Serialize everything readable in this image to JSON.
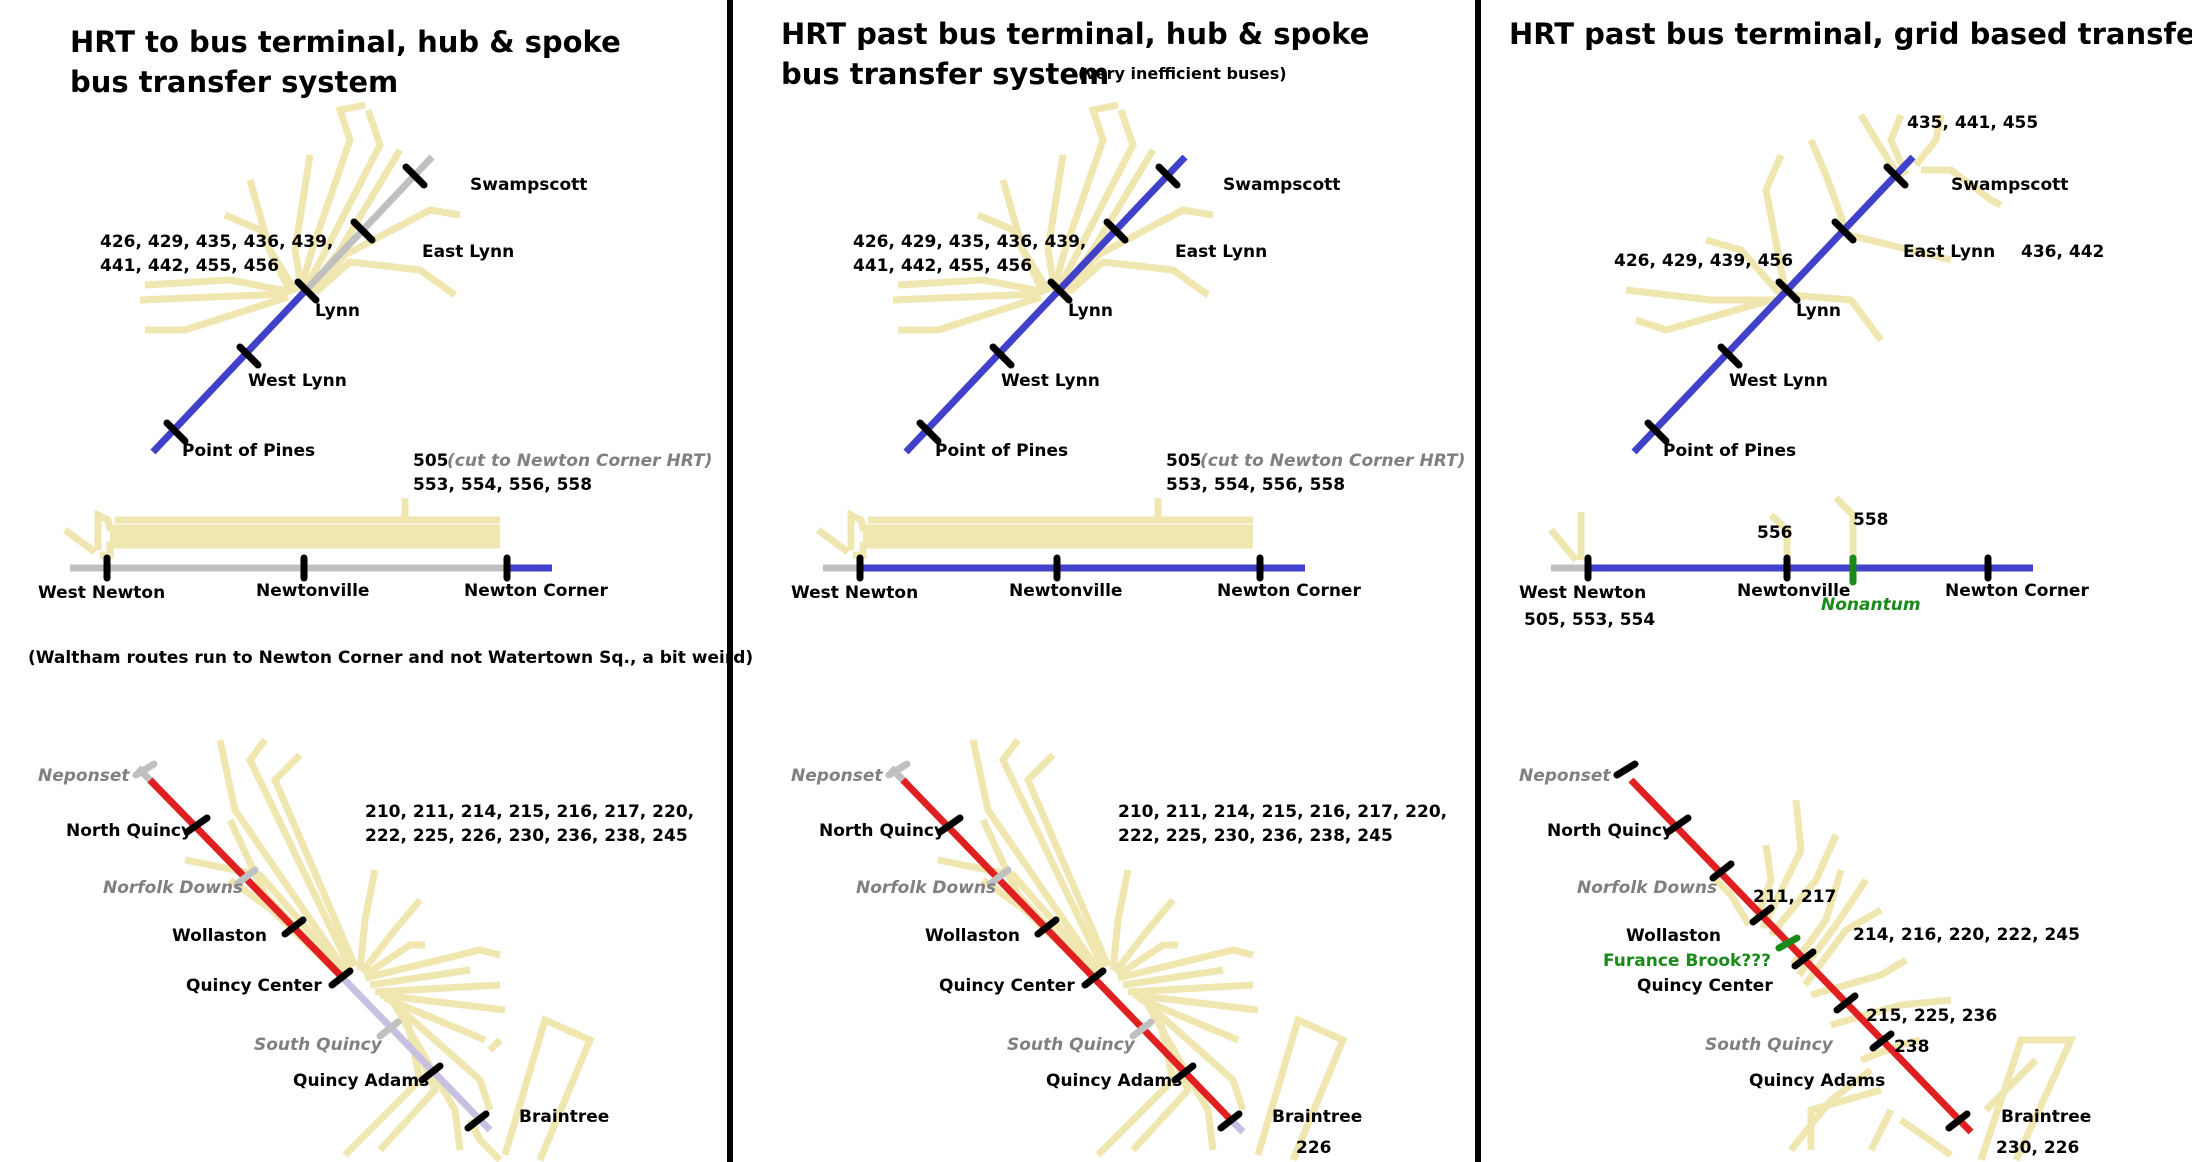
{
  "panel1": {
    "title_line1": "HRT to bus terminal, hub & spoke",
    "title_line2": "bus transfer system",
    "lynn_routes_1": "426, 429, 435, 436, 439,",
    "lynn_routes_2": "441, 442, 455, 456",
    "swampscott": "Swampscott",
    "east_lynn": "East Lynn",
    "lynn": "Lynn",
    "west_lynn": "West Lynn",
    "point_of_pines": "Point of Pines",
    "route_505": "505",
    "cut_note": "(cut to Newton Corner HRT)",
    "routes_55x": "553, 554, 556, 558",
    "west_newton": "West Newton",
    "newtonville": "Newtonville",
    "newton_corner": "Newton Corner",
    "waltham_note": "(Waltham routes run to Newton Corner and not Watertown Sq., a bit weird)",
    "neponset": "Neponset",
    "north_quincy": "North Quincy",
    "norfolk_downs": "Norfolk Downs",
    "wollaston": "Wollaston",
    "quincy_center": "Quincy Center",
    "south_quincy": "South Quincy",
    "quincy_adams": "Quincy Adams",
    "braintree": "Braintree",
    "quincy_routes_1": "210, 211, 214, 215, 216, 217, 220,",
    "quincy_routes_2": "222, 225, 226, 230, 236, 238, 245"
  },
  "panel2": {
    "title_line1": "HRT past bus terminal, hub & spoke",
    "title_line2": "bus transfer system",
    "subnote": "(very inefficient buses)",
    "lynn_routes_1": "426, 429, 435, 436, 439,",
    "lynn_routes_2": "441, 442, 455, 456",
    "swampscott": "Swampscott",
    "east_lynn": "East Lynn",
    "lynn": "Lynn",
    "west_lynn": "West Lynn",
    "point_of_pines": "Point of Pines",
    "route_505": "505",
    "cut_note": "(cut to Newton Corner HRT)",
    "routes_55x": "553, 554, 556, 558",
    "west_newton": "West Newton",
    "newtonville": "Newtonville",
    "newton_corner": "Newton Corner",
    "neponset": "Neponset",
    "north_quincy": "North Quincy",
    "norfolk_downs": "Norfolk Downs",
    "wollaston": "Wollaston",
    "quincy_center": "Quincy Center",
    "south_quincy": "South Quincy",
    "quincy_adams": "Quincy Adams",
    "braintree": "Braintree",
    "braintree_route": "226",
    "quincy_routes_1": "210, 211, 214, 215, 216, 217, 220,",
    "quincy_routes_2": "222, 225, 230, 236, 238, 245"
  },
  "panel3": {
    "title": "HRT past bus terminal, grid based transfer system",
    "routes_top": "435, 441, 455",
    "swampscott": "Swampscott",
    "east_lynn": "East Lynn",
    "routes_east": "436, 442",
    "lynn_routes": "426, 429, 439, 456",
    "lynn": "Lynn",
    "west_lynn": "West Lynn",
    "point_of_pines": "Point of Pines",
    "route_556": "556",
    "route_558": "558",
    "west_newton": "West Newton",
    "west_newton_routes": "505, 553, 554",
    "newtonville": "Newtonville",
    "nonantum": "Nonantum",
    "newton_corner": "Newton Corner",
    "neponset": "Neponset",
    "north_quincy": "North Quincy",
    "norfolk_downs": "Norfolk Downs",
    "routes_211": "211, 217",
    "wollaston": "Wollaston",
    "furnace_brook": "Furance Brook???",
    "routes_214": "214, 216, 220, 222, 245",
    "quincy_center": "Quincy Center",
    "routes_215": "215, 225, 236",
    "south_quincy": "South Quincy",
    "route_238": "238",
    "quincy_adams": "Quincy Adams",
    "braintree": "Braintree",
    "braintree_routes": "230, 226"
  },
  "colors": {
    "bus_routes": "#f0e6b0",
    "blue_line": "#4040c8",
    "red_line": "#e02020",
    "removed_line": "#c0c0c0",
    "station_tick": "#000000",
    "new_station": "#1a8a1a"
  }
}
